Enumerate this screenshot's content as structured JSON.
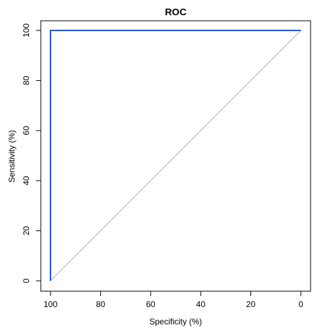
{
  "chart_data": {
    "type": "line",
    "title": "ROC",
    "xlabel": "Specificity (%)",
    "ylabel": "Sensitivity (%)",
    "xlim": [
      100,
      0
    ],
    "ylim": [
      0,
      100
    ],
    "x_ticks": [
      100,
      80,
      60,
      40,
      20,
      0
    ],
    "y_ticks": [
      0,
      20,
      40,
      60,
      80,
      100
    ],
    "x_tick_labels": [
      "100",
      "80",
      "60",
      "40",
      "20",
      "0"
    ],
    "y_tick_labels": [
      "0",
      "20",
      "40",
      "60",
      "80",
      "100"
    ],
    "grid": false,
    "series": [
      {
        "color": "#2255dd",
        "x": [
          100,
          100,
          0
        ],
        "y": [
          0,
          100,
          100
        ]
      }
    ],
    "reference_line": {
      "color": "#b3b3b3",
      "x": [
        100,
        0
      ],
      "y": [
        0,
        100
      ]
    }
  }
}
